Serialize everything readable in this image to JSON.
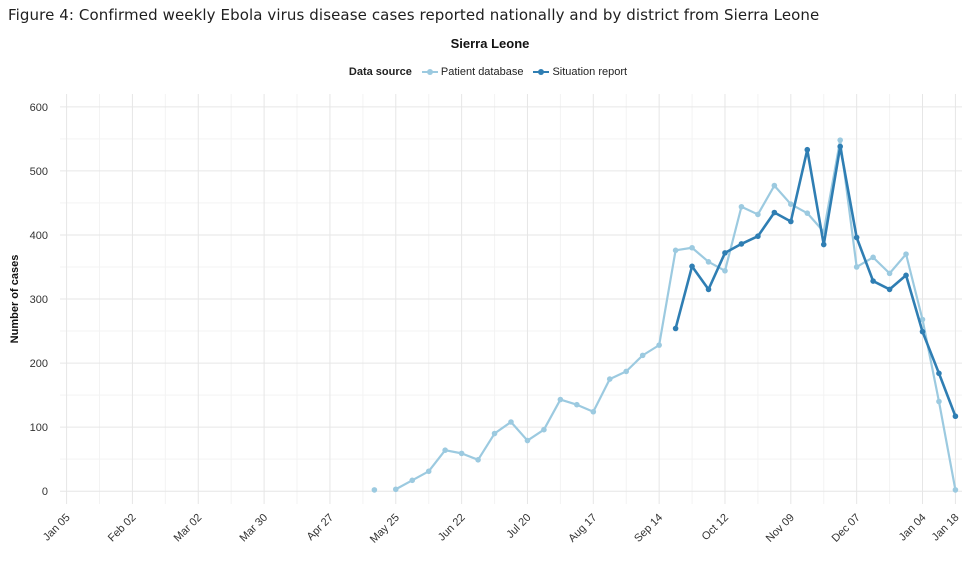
{
  "figure_title": "Figure 4: Confirmed weekly Ebola virus disease cases reported nationally and by district from Sierra Leone",
  "chart_data": {
    "type": "line",
    "title": "Sierra Leone",
    "xlabel": "",
    "ylabel": "Number of cases",
    "ylim": [
      0,
      600
    ],
    "yticks": [
      0,
      100,
      200,
      300,
      400,
      500,
      600
    ],
    "xticks": [
      "Jan 05",
      "Feb 02",
      "Mar 02",
      "Mar 30",
      "Apr 27",
      "May 25",
      "Jun 22",
      "Jul 20",
      "Aug 17",
      "Sep 14",
      "Oct 12",
      "Nov 09",
      "Dec 07",
      "Jan 04",
      "Jan 18"
    ],
    "xtick_weeks": [
      0,
      4,
      8,
      12,
      16,
      20,
      24,
      28,
      32,
      36,
      40,
      44,
      48,
      52,
      54
    ],
    "grid": true,
    "legend_title": "Data source",
    "legend_position": "top",
    "series": [
      {
        "name": "Patient database",
        "color": "#9ccae0",
        "points": [
          [
            18.7,
            2
          ],
          [
            20,
            3
          ],
          [
            21,
            17
          ],
          [
            22,
            31
          ],
          [
            23,
            64
          ],
          [
            24,
            59
          ],
          [
            25,
            49
          ],
          [
            26,
            90
          ],
          [
            27,
            108
          ],
          [
            28,
            79
          ],
          [
            29,
            96
          ],
          [
            30,
            143
          ],
          [
            31,
            135
          ],
          [
            32,
            124
          ],
          [
            33,
            175
          ],
          [
            34,
            187
          ],
          [
            35,
            212
          ],
          [
            36,
            228
          ],
          [
            37,
            376
          ],
          [
            38,
            380
          ],
          [
            39,
            358
          ],
          [
            40,
            344
          ],
          [
            41,
            444
          ],
          [
            42,
            432
          ],
          [
            43,
            477
          ],
          [
            44,
            448
          ],
          [
            45,
            434
          ],
          [
            46,
            405
          ],
          [
            47,
            548
          ],
          [
            48,
            350
          ],
          [
            49,
            365
          ],
          [
            50,
            340
          ],
          [
            51,
            370
          ],
          [
            52,
            268
          ],
          [
            53,
            140
          ],
          [
            54,
            2
          ]
        ]
      },
      {
        "name": "Situation report",
        "color": "#2f7eb3",
        "points": [
          [
            37,
            254
          ],
          [
            38,
            351
          ],
          [
            39,
            315
          ],
          [
            40,
            372
          ],
          [
            41,
            386
          ],
          [
            42,
            398
          ],
          [
            43,
            435
          ],
          [
            44,
            421
          ],
          [
            45,
            533
          ],
          [
            46,
            385
          ],
          [
            47,
            538
          ],
          [
            48,
            396
          ],
          [
            49,
            328
          ],
          [
            50,
            315
          ],
          [
            51,
            337
          ],
          [
            52,
            249
          ],
          [
            53,
            184
          ],
          [
            54,
            117
          ]
        ]
      }
    ]
  }
}
